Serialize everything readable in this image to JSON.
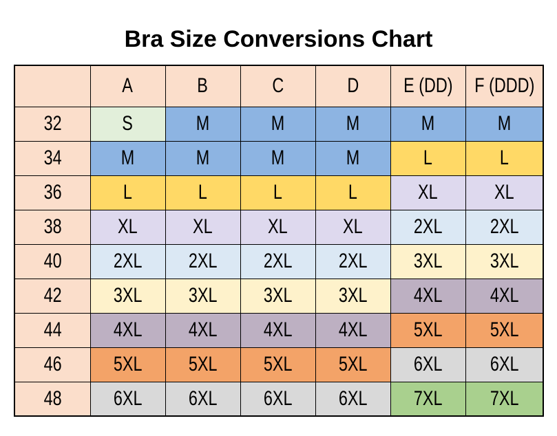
{
  "title": "Bra Size Conversions Chart",
  "chart_data": {
    "type": "table",
    "title": "Bra Size Conversions Chart",
    "corner_label": "",
    "columns": [
      "A",
      "B",
      "C",
      "D",
      "E (DD)",
      "F (DDD)"
    ],
    "rows": [
      {
        "label": "32",
        "cells": [
          "S",
          "M",
          "M",
          "M",
          "M",
          "M"
        ]
      },
      {
        "label": "34",
        "cells": [
          "M",
          "M",
          "M",
          "M",
          "L",
          "L"
        ]
      },
      {
        "label": "36",
        "cells": [
          "L",
          "L",
          "L",
          "L",
          "XL",
          "XL"
        ]
      },
      {
        "label": "38",
        "cells": [
          "XL",
          "XL",
          "XL",
          "XL",
          "2XL",
          "2XL"
        ]
      },
      {
        "label": "40",
        "cells": [
          "2XL",
          "2XL",
          "2XL",
          "2XL",
          "3XL",
          "3XL"
        ]
      },
      {
        "label": "42",
        "cells": [
          "3XL",
          "3XL",
          "3XL",
          "3XL",
          "4XL",
          "4XL"
        ]
      },
      {
        "label": "44",
        "cells": [
          "4XL",
          "4XL",
          "4XL",
          "4XL",
          "5XL",
          "5XL"
        ]
      },
      {
        "label": "46",
        "cells": [
          "5XL",
          "5XL",
          "5XL",
          "5XL",
          "6XL",
          "6XL"
        ]
      },
      {
        "label": "48",
        "cells": [
          "6XL",
          "6XL",
          "6XL",
          "6XL",
          "7XL",
          "7XL"
        ]
      }
    ]
  },
  "palette": {
    "header_bg": "#fbdecb",
    "label_bg": "#fbdecb",
    "S": "#e2efda",
    "M": "#8db4e2",
    "L": "#ffd966",
    "XL": "#ded9ee",
    "2XL": "#dbe8f4",
    "3XL": "#fef2cb",
    "4XL": "#bdb0c2",
    "5XL": "#f3a368",
    "6XL": "#d9d9d9",
    "7XL": "#a9d08e",
    "border": "#000000",
    "text": "#000000"
  }
}
